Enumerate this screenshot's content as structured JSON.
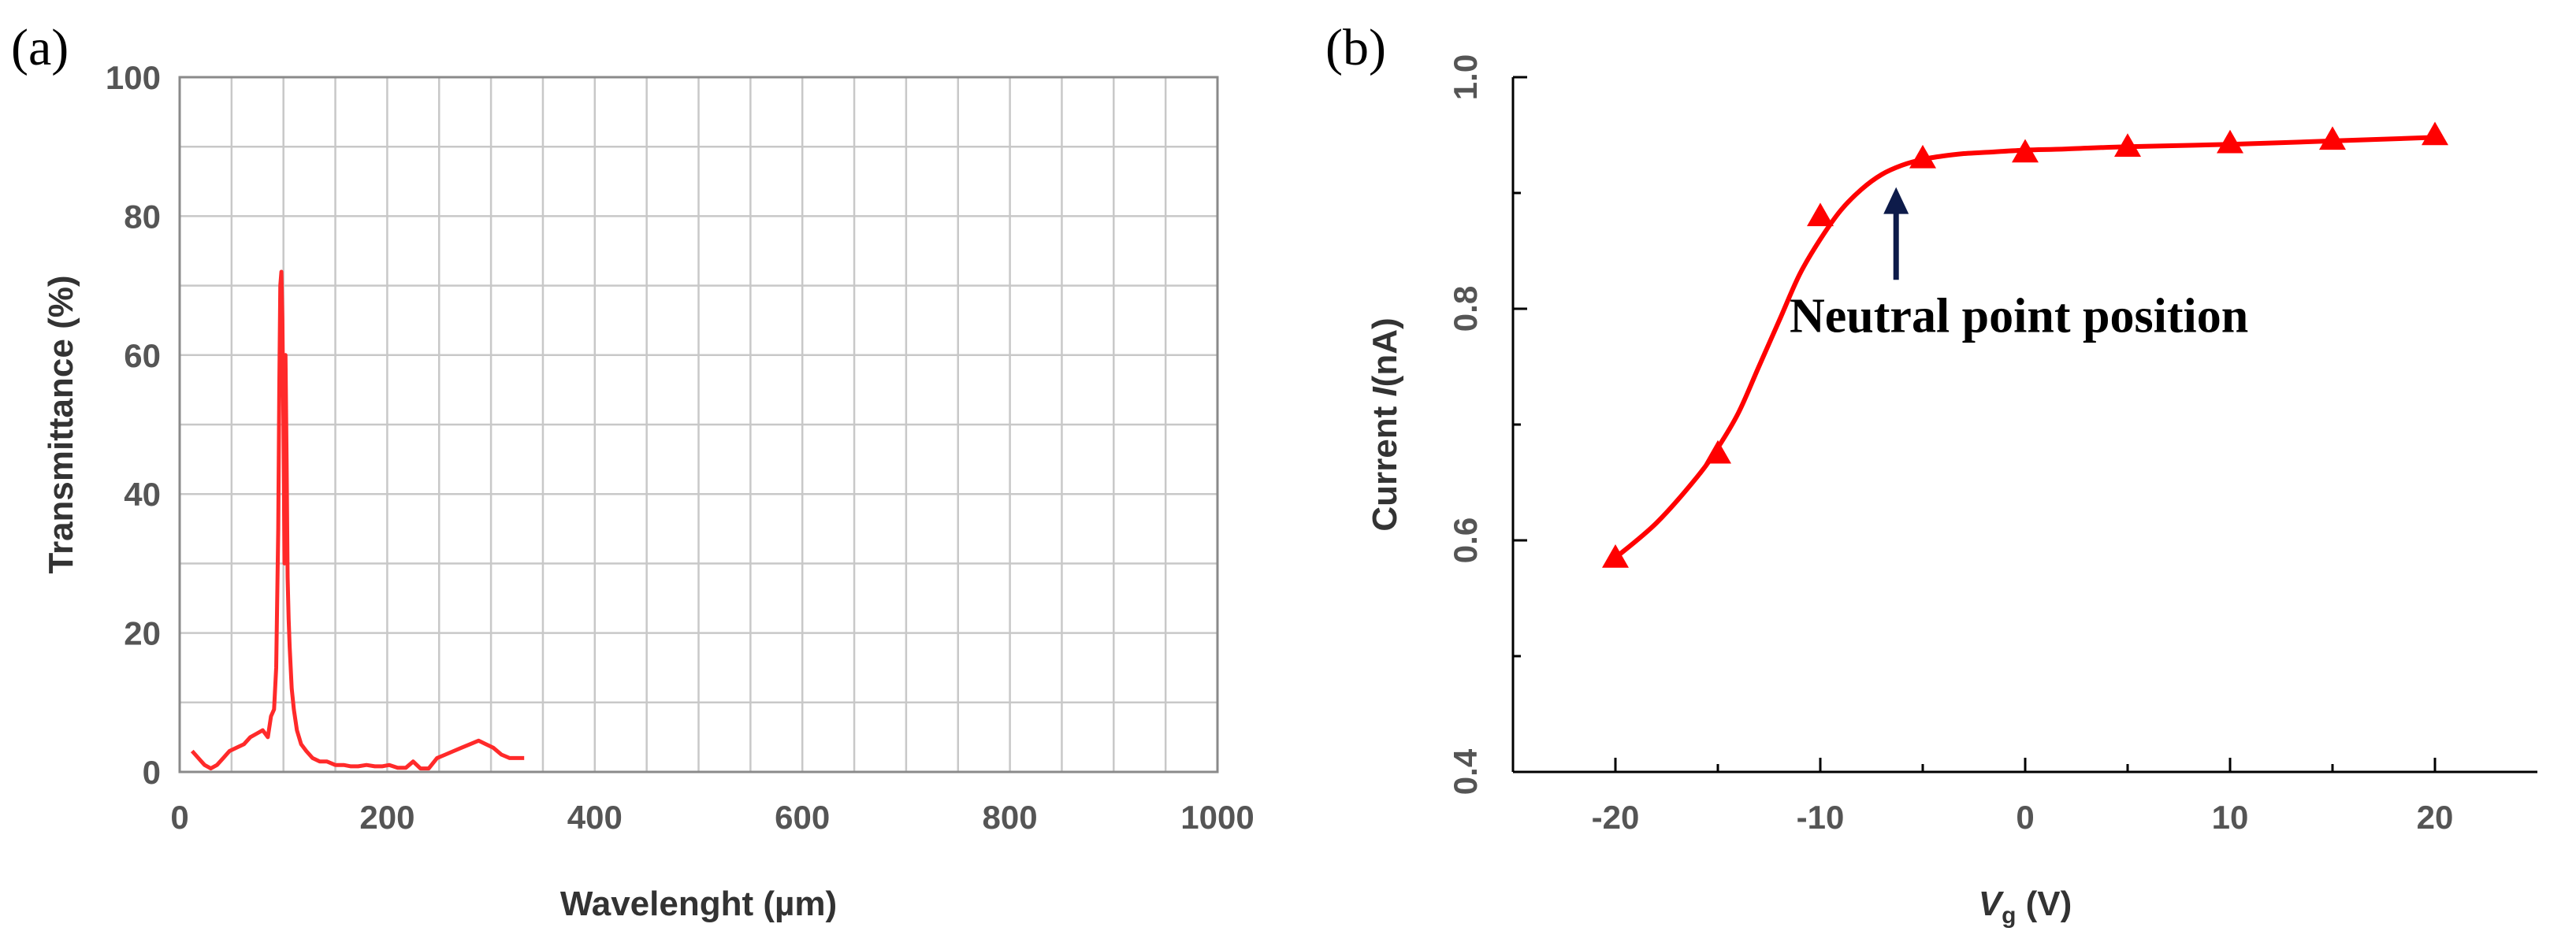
{
  "chart_data": [
    {
      "panel_label": "(a)",
      "type": "line",
      "xlabel": "Wavelenght (µm)",
      "ylabel": "Transmittance (%)",
      "xlim": [
        0,
        1000
      ],
      "ylim": [
        0,
        100
      ],
      "x_ticks": [
        "0",
        "200",
        "400",
        "600",
        "800",
        "1000"
      ],
      "y_ticks": [
        "0",
        "20",
        "40",
        "60",
        "80",
        "100"
      ],
      "grid": true,
      "series_color": "#ff2a2a",
      "series": [
        {
          "x": [
            12,
            18,
            24,
            30,
            36,
            42,
            48,
            55,
            62,
            68,
            74,
            80,
            85,
            88,
            91,
            93,
            95,
            96,
            97,
            98,
            99,
            100,
            101,
            102,
            103,
            104,
            105,
            106,
            108,
            110,
            113,
            117,
            122,
            128,
            135,
            142,
            150,
            158,
            165,
            172,
            180,
            188,
            195,
            202,
            210,
            218,
            225,
            232,
            240,
            248,
            256,
            264,
            272,
            280,
            288,
            295,
            302,
            310,
            318,
            326,
            332
          ],
          "y": [
            3,
            2,
            1,
            0.5,
            1,
            2,
            3,
            3.5,
            4,
            5,
            5.5,
            6,
            5,
            8,
            9,
            15,
            35,
            55,
            70,
            72,
            65,
            50,
            30,
            60,
            45,
            28,
            22,
            18,
            12,
            9,
            6,
            4,
            3,
            2,
            1.5,
            1.5,
            1,
            1,
            0.8,
            0.8,
            1,
            0.8,
            0.8,
            1,
            0.6,
            0.6,
            1.5,
            0.5,
            0.5,
            2,
            2.5,
            3,
            3.5,
            4,
            4.5,
            4,
            3.5,
            2.5,
            2,
            2,
            2
          ]
        }
      ]
    },
    {
      "panel_label": "(b)",
      "type": "scatter",
      "xlabel_main": "V",
      "xlabel_sub": "g",
      "xlabel_unit": " (V)",
      "ylabel_prefix": "Current ",
      "ylabel_var": "I",
      "ylabel_unit": "(nA)",
      "xlim": [
        -25,
        25
      ],
      "ylim": [
        0.4,
        1.0
      ],
      "x_ticks": [
        "-20",
        "-10",
        "0",
        "10",
        "20"
      ],
      "y_ticks": [
        "0.4",
        "0.6",
        "0.8",
        "1.0"
      ],
      "grid": false,
      "series_color": "#ff0000",
      "marker": "triangle",
      "series": [
        {
          "x": [
            -20,
            -15,
            -10,
            -5,
            0,
            5,
            10,
            15,
            20
          ],
          "y": [
            0.585,
            0.675,
            0.88,
            0.93,
            0.935,
            0.94,
            0.943,
            0.946,
            0.95
          ]
        }
      ],
      "fit_curve": {
        "x": [
          -20,
          -18,
          -16,
          -15,
          -14,
          -13,
          -12,
          -11,
          -10,
          -9,
          -8,
          -7,
          -6,
          -5,
          -4,
          -3,
          -2,
          0,
          2,
          5,
          10,
          15,
          20
        ],
        "y": [
          0.585,
          0.615,
          0.655,
          0.68,
          0.71,
          0.75,
          0.79,
          0.83,
          0.86,
          0.885,
          0.903,
          0.916,
          0.924,
          0.929,
          0.932,
          0.934,
          0.935,
          0.937,
          0.938,
          0.94,
          0.942,
          0.945,
          0.948
        ]
      },
      "annotation": {
        "text": "Neutral point position",
        "arrow_x": -6.3,
        "arrow_y_from": 0.825,
        "arrow_y_to": 0.905,
        "arrow_color": "#0d1b4a"
      }
    }
  ]
}
